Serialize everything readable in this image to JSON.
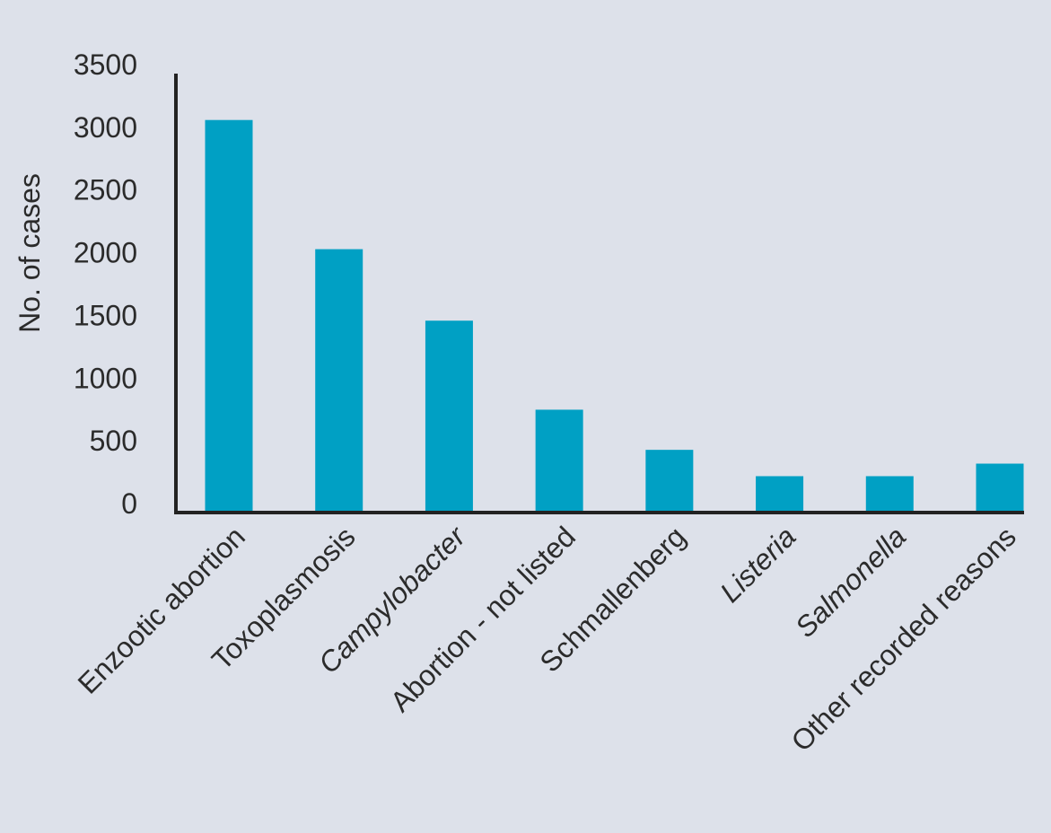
{
  "colors": {
    "background": "#dde1ea",
    "bar": "#00a0c4",
    "axis": "#222222",
    "text": "#2b2b2b"
  },
  "chart_data": {
    "type": "bar",
    "title": "",
    "xlabel": "",
    "ylabel": "No. of cases",
    "ylim": [
      0,
      3500
    ],
    "yticks": [
      0,
      500,
      1000,
      1500,
      2000,
      2500,
      3000,
      3500
    ],
    "grid": false,
    "categories": [
      "Enzootic abortion",
      "Toxoplasmosis",
      "Campylobacter",
      "Abortion - not listed",
      "Schmallenberg",
      "Listeria",
      "Salmonella",
      "Other recorded reasons"
    ],
    "italic_categories": [
      "Campylobacter",
      "Listeria",
      "Salmonella"
    ],
    "values": [
      3130,
      2100,
      1530,
      820,
      500,
      290,
      290,
      390
    ]
  }
}
